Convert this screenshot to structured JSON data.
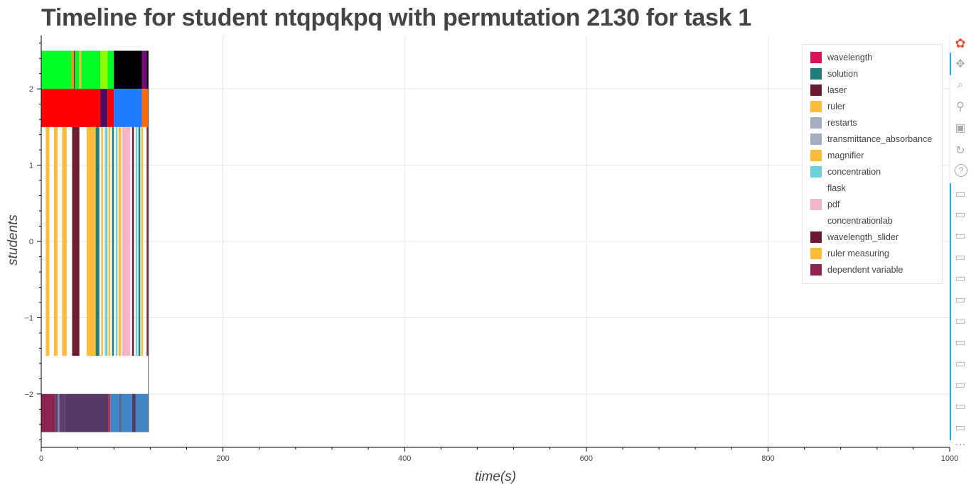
{
  "chart_data": {
    "type": "timeline",
    "title": "Timeline for student ntqpqkpq with permutation 2130 for task 1",
    "xlabel": "time(s)",
    "ylabel": "students",
    "xlim": [
      0,
      1000
    ],
    "ylim": [
      -2.7,
      2.7
    ],
    "x_ticks": [
      0,
      200,
      400,
      600,
      800,
      1000
    ],
    "y_ticks": [
      2,
      1,
      0,
      -1,
      -2
    ],
    "x_tick_labels": [
      "0",
      "200",
      "400",
      "600",
      "800",
      "1000"
    ],
    "y_tick_labels": [
      "2",
      "1",
      "0",
      "−1",
      "−2"
    ],
    "grid": true,
    "legend_position": "top-right",
    "rows": [
      {
        "y0": 2.0,
        "y1": 2.5,
        "segments": [
          {
            "x0": 0,
            "x1": 33,
            "color": "#00ff26"
          },
          {
            "x0": 33,
            "x1": 36,
            "color": "#d4a017"
          },
          {
            "x0": 36,
            "x1": 37,
            "color": "#6b1f2e"
          },
          {
            "x0": 37,
            "x1": 42,
            "color": "#00ff26"
          },
          {
            "x0": 42,
            "x1": 44,
            "color": "#ffb938"
          },
          {
            "x0": 44,
            "x1": 65,
            "color": "#00ff26"
          },
          {
            "x0": 65,
            "x1": 73,
            "color": "#8fff00"
          },
          {
            "x0": 73,
            "x1": 80,
            "color": "#00ff26"
          },
          {
            "x0": 80,
            "x1": 111,
            "color": "#000000"
          },
          {
            "x0": 111,
            "x1": 116,
            "color": "#7a0a7a"
          },
          {
            "x0": 116,
            "x1": 118,
            "color": "#000000"
          }
        ]
      },
      {
        "y0": 1.5,
        "y1": 2.0,
        "segments": [
          {
            "x0": 0,
            "x1": 65,
            "color": "#ff0000"
          },
          {
            "x0": 65,
            "x1": 73,
            "color": "#4b0a5e"
          },
          {
            "x0": 73,
            "x1": 80,
            "color": "#ff0000"
          },
          {
            "x0": 80,
            "x1": 111,
            "color": "#1f7bff"
          },
          {
            "x0": 111,
            "x1": 118,
            "color": "#ff6a00"
          }
        ]
      },
      {
        "y0": -1.5,
        "y1": 1.5,
        "segments": [
          {
            "x0": 5,
            "x1": 9,
            "color": "#ffbc3d"
          },
          {
            "x0": 14,
            "x1": 18,
            "color": "#ffbc3d"
          },
          {
            "x0": 23,
            "x1": 28,
            "color": "#ffbc3d"
          },
          {
            "x0": 34,
            "x1": 42,
            "color": "#6b1f2e"
          },
          {
            "x0": 50,
            "x1": 60,
            "color": "#ffbc3d"
          },
          {
            "x0": 60,
            "x1": 64,
            "color": "#1e7e7a"
          },
          {
            "x0": 66,
            "x1": 68,
            "color": "#ffbc3d"
          },
          {
            "x0": 70,
            "x1": 73,
            "color": "#6dd0da"
          },
          {
            "x0": 74,
            "x1": 76,
            "color": "#ffbc3d"
          },
          {
            "x0": 78,
            "x1": 80,
            "color": "#1e7e7a"
          },
          {
            "x0": 82,
            "x1": 84,
            "color": "#6dd0da"
          },
          {
            "x0": 85,
            "x1": 88,
            "color": "#ffbc3d"
          },
          {
            "x0": 89,
            "x1": 98,
            "color": "#f2b6c6"
          },
          {
            "x0": 100,
            "x1": 102,
            "color": "#6b1f2e"
          },
          {
            "x0": 104,
            "x1": 106,
            "color": "#6dd0da"
          },
          {
            "x0": 107,
            "x1": 109,
            "color": "#1e7e7a"
          },
          {
            "x0": 110,
            "x1": 112,
            "color": "#ffbc3d"
          },
          {
            "x0": 116,
            "x1": 118,
            "color": "#8b2550"
          }
        ]
      },
      {
        "y0": -2.5,
        "y1": -2.0,
        "segments": [
          {
            "x0": 0,
            "x1": 15,
            "color": "#8b2550"
          },
          {
            "x0": 15,
            "x1": 18,
            "color": "#5b3f6e"
          },
          {
            "x0": 18,
            "x1": 20,
            "color": "#8a7fa0"
          },
          {
            "x0": 20,
            "x1": 26,
            "color": "#5b3f6e"
          },
          {
            "x0": 26,
            "x1": 74,
            "color": "#553a63"
          },
          {
            "x0": 74,
            "x1": 76,
            "color": "#c03050"
          },
          {
            "x0": 76,
            "x1": 86,
            "color": "#3f88c5"
          },
          {
            "x0": 86,
            "x1": 88,
            "color": "#6a5a7d"
          },
          {
            "x0": 88,
            "x1": 100,
            "color": "#3f88c5"
          },
          {
            "x0": 100,
            "x1": 104,
            "color": "#553a63"
          },
          {
            "x0": 104,
            "x1": 118,
            "color": "#3f88c5"
          }
        ]
      }
    ],
    "legend": [
      {
        "label": "wavelength",
        "color": "#d6145a"
      },
      {
        "label": "solution",
        "color": "#1f7f78"
      },
      {
        "label": "laser",
        "color": "#6b1a30"
      },
      {
        "label": "ruler",
        "color": "#ffbb3a"
      },
      {
        "label": "restarts",
        "color": "#a3afc0"
      },
      {
        "label": "transmittance_absorbance",
        "color": "#a3afc0"
      },
      {
        "label": "magnifier",
        "color": "#ffbb3a"
      },
      {
        "label": "concentration",
        "color": "#6dd0da"
      },
      {
        "label": "flask",
        "color": "#ffffff"
      },
      {
        "label": "pdf",
        "color": "#f2b6c6"
      },
      {
        "label": "concentrationlab",
        "color": "#ffffff"
      },
      {
        "label": "wavelength_slider",
        "color": "#6b1a30"
      },
      {
        "label": "ruler measuring",
        "color": "#ffbb3a"
      },
      {
        "label": "dependent variable",
        "color": "#8b2550"
      }
    ]
  },
  "toolbar": {
    "tools": [
      {
        "name": "bokeh-logo-icon",
        "glyph": "✿"
      },
      {
        "name": "pan-icon",
        "glyph": "✥"
      },
      {
        "name": "box-zoom-icon",
        "glyph": "⌕"
      },
      {
        "name": "wheel-zoom-icon",
        "glyph": "⚲"
      },
      {
        "name": "save-icon",
        "glyph": "▣"
      },
      {
        "name": "reset-icon",
        "glyph": "↻"
      },
      {
        "name": "help-icon",
        "glyph": "?"
      },
      {
        "name": "hover-icon-1",
        "glyph": "▭"
      },
      {
        "name": "hover-icon-2",
        "glyph": "▭"
      },
      {
        "name": "hover-icon-3",
        "glyph": "▭"
      },
      {
        "name": "hover-icon-4",
        "glyph": "▭"
      },
      {
        "name": "hover-icon-5",
        "glyph": "▭"
      },
      {
        "name": "hover-icon-6",
        "glyph": "▭"
      },
      {
        "name": "hover-icon-7",
        "glyph": "▭"
      },
      {
        "name": "hover-icon-8",
        "glyph": "▭"
      },
      {
        "name": "hover-icon-9",
        "glyph": "▭"
      },
      {
        "name": "hover-icon-10",
        "glyph": "▭"
      },
      {
        "name": "hover-icon-11",
        "glyph": "▭"
      },
      {
        "name": "hover-icon-12",
        "glyph": "▭"
      },
      {
        "name": "more-icon",
        "glyph": "⋯"
      }
    ]
  }
}
